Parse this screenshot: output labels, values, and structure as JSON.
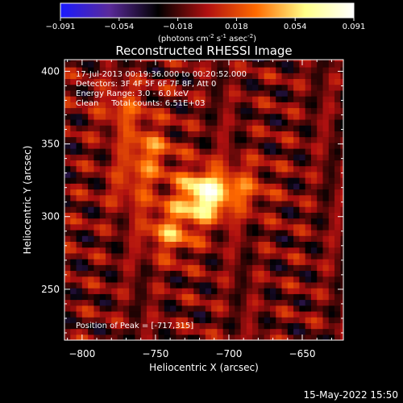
{
  "colorbar": {
    "ticks": [
      "-0.091",
      "-0.054",
      "-0.018",
      "0.018",
      "0.054",
      "0.091"
    ],
    "units_main": "(photons cm",
    "units_exp1": "-2",
    "units_mid": " s",
    "units_exp2": "-1",
    "units_tail": " asec",
    "units_exp3": "-2",
    "units_close": ")",
    "colors": [
      "#1a1aff",
      "#5a2a9a",
      "#000000",
      "#b01010",
      "#ff6a00",
      "#ffff88",
      "#ffffff"
    ]
  },
  "chart_data": {
    "type": "heatmap",
    "title": "Reconstructed RHESSI Image",
    "xlabel": "Heliocentric X (arcsec)",
    "ylabel": "Heliocentric Y (arcsec)",
    "xlim": [
      -812,
      -622
    ],
    "ylim": [
      215,
      408
    ],
    "xticks": [
      -800,
      -750,
      -700,
      -650
    ],
    "yticks": [
      250,
      300,
      350,
      400
    ],
    "xtick_labels": [
      "−800",
      "−750",
      "−700",
      "−650"
    ],
    "ytick_labels": [
      "250",
      "300",
      "350",
      "400"
    ],
    "value_range": [
      -0.091,
      0.091
    ],
    "peak": [
      -717,
      315
    ],
    "sources": [
      {
        "x": -717,
        "y": 315,
        "amp": 0.091
      },
      {
        "x": -740,
        "y": 290,
        "amp": 0.045
      },
      {
        "x": -755,
        "y": 345,
        "amp": 0.04
      },
      {
        "x": -772,
        "y": 375,
        "amp": 0.03
      },
      {
        "x": -690,
        "y": 320,
        "amp": 0.03
      },
      {
        "x": -765,
        "y": 320,
        "amp": 0.025
      }
    ]
  },
  "annotations": {
    "time": "17-Jul-2013 00:19:36.000 to 00:20:52.000",
    "detectors": "Detectors: 3F 4F 5F 6F 7F 8F, Att 0",
    "energy": "Energy Range: 3.0 - 6.0 keV",
    "clean": "Clean     Total counts: 6.51E+03",
    "peak": "Position of Peak = [-717,315]"
  },
  "footer": {
    "date": "15-May-2022 15:50"
  }
}
